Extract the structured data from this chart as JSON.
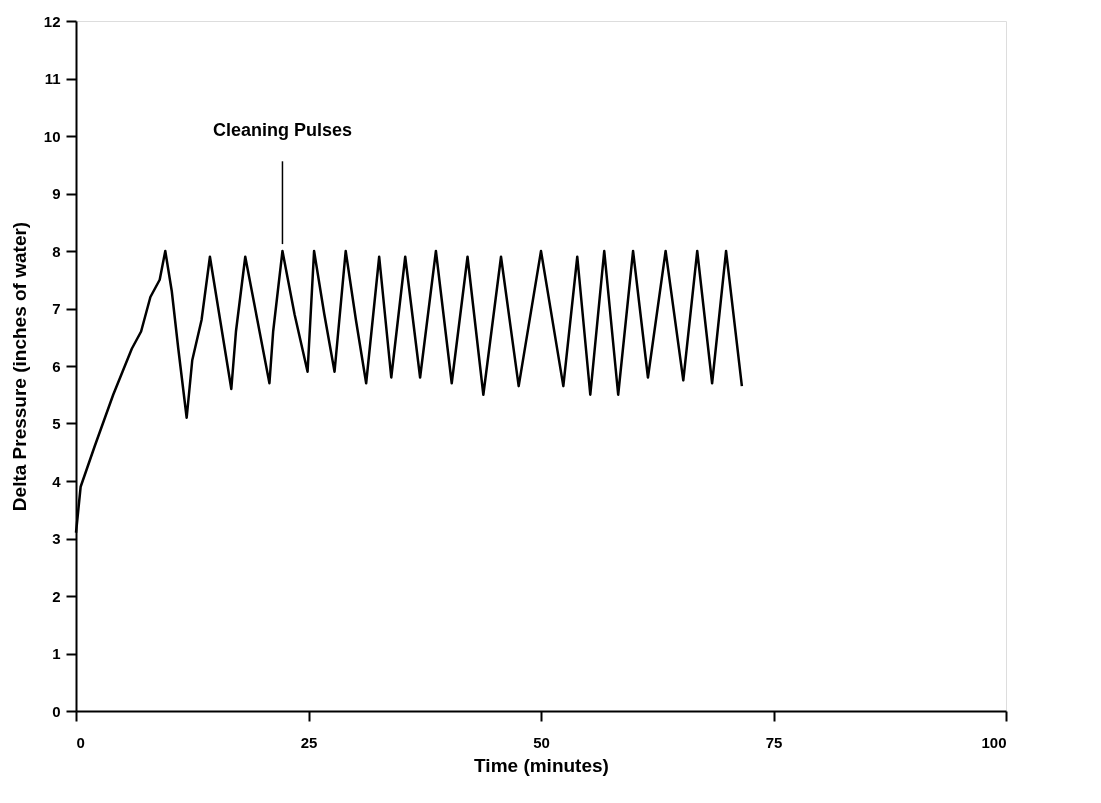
{
  "chart_data": {
    "type": "line",
    "xlabel": "Time  (minutes)",
    "ylabel": "Delta Pressure (inches of water)",
    "annotations": [
      {
        "text": "Cleaning Pulses",
        "x": 22.2,
        "y": 8.0
      }
    ],
    "xlim": [
      0,
      100
    ],
    "xticks": [
      0,
      25,
      50,
      75,
      100
    ],
    "ylim": [
      0,
      12
    ],
    "yticks": [
      0,
      1,
      2,
      3,
      4,
      5,
      6,
      7,
      8,
      9,
      10,
      11,
      12
    ],
    "grid": false,
    "series": [
      {
        "color": "#000000",
        "line_style": "solid",
        "x": [
          0,
          0.5,
          2,
          4,
          5,
          6,
          7,
          8,
          9,
          9.6,
          10.3,
          11,
          11.9,
          12.5,
          13.5,
          14.4,
          15.5,
          16.7,
          17.2,
          18.2,
          19.5,
          20.8,
          21.2,
          22.2,
          23.5,
          24.9,
          25.6,
          26.7,
          27.8,
          29.0,
          30.1,
          31.2,
          32.6,
          33.9,
          35.4,
          37.0,
          38.7,
          40.4,
          42.1,
          43.8,
          45.7,
          47.6,
          50.0,
          52.4,
          53.9,
          55.3,
          56.8,
          58.3,
          59.9,
          61.5,
          63.4,
          65.3,
          66.8,
          68.4,
          69.9,
          71.6
        ],
        "values": [
          3.1,
          3.9,
          4.6,
          5.5,
          5.9,
          6.3,
          6.6,
          7.2,
          7.5,
          8.0,
          7.3,
          6.3,
          5.1,
          6.1,
          6.8,
          7.9,
          6.8,
          5.6,
          6.6,
          7.9,
          6.8,
          5.7,
          6.6,
          8.0,
          6.9,
          5.9,
          8.0,
          6.9,
          5.9,
          8.0,
          6.8,
          5.7,
          7.9,
          5.8,
          7.9,
          5.8,
          8.0,
          5.7,
          7.9,
          5.5,
          7.9,
          5.65,
          8.0,
          5.65,
          7.9,
          5.5,
          8.0,
          5.5,
          8.0,
          5.8,
          8.0,
          5.75,
          8.0,
          5.7,
          8.0,
          5.65
        ]
      }
    ]
  }
}
